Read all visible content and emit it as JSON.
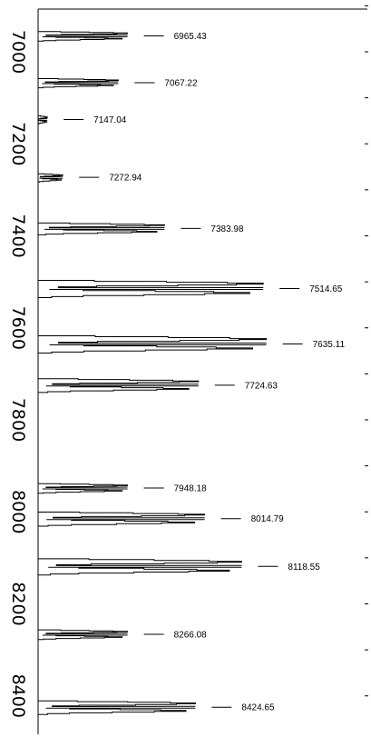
{
  "chart_data": {
    "type": "line",
    "title": "",
    "xlabel": "",
    "ylabel": "",
    "orientation": "rotated",
    "wavelength_range": [
      6900,
      8480
    ],
    "major_ticks": [
      7000,
      7200,
      7400,
      7600,
      7800,
      8000,
      8200,
      8400
    ],
    "major_tick_labels": [
      "7000",
      "7200",
      "7400",
      "7600",
      "7800",
      "8000",
      "8200",
      "8400"
    ],
    "minor_ticks_step": 100,
    "peaks": [
      {
        "wavelength": 6965.43,
        "label": "6965.43",
        "strength": 0.29
      },
      {
        "wavelength": 7067.22,
        "label": "7067.22",
        "strength": 0.26
      },
      {
        "wavelength": 7147.04,
        "label": "7147.04",
        "strength": 0.03
      },
      {
        "wavelength": 7272.94,
        "label": "7272.94",
        "strength": 0.08
      },
      {
        "wavelength": 7383.98,
        "label": "7383.98",
        "strength": 0.41
      },
      {
        "wavelength": 7514.65,
        "label": "7514.65",
        "strength": 0.73
      },
      {
        "wavelength": 7635.11,
        "label": "7635.11",
        "strength": 0.74
      },
      {
        "wavelength": 7724.63,
        "label": "7724.63",
        "strength": 0.52
      },
      {
        "wavelength": 7948.18,
        "label": "7948.18",
        "strength": 0.29
      },
      {
        "wavelength": 8014.79,
        "label": "8014.79",
        "strength": 0.54
      },
      {
        "wavelength": 8118.55,
        "label": "8118.55",
        "strength": 0.66
      },
      {
        "wavelength": 8266.08,
        "label": "8266.08",
        "strength": 0.29
      },
      {
        "wavelength": 8424.65,
        "label": "8424.65",
        "strength": 0.51
      }
    ],
    "colors": {
      "line": "#000000",
      "background": "#ffffff"
    }
  }
}
